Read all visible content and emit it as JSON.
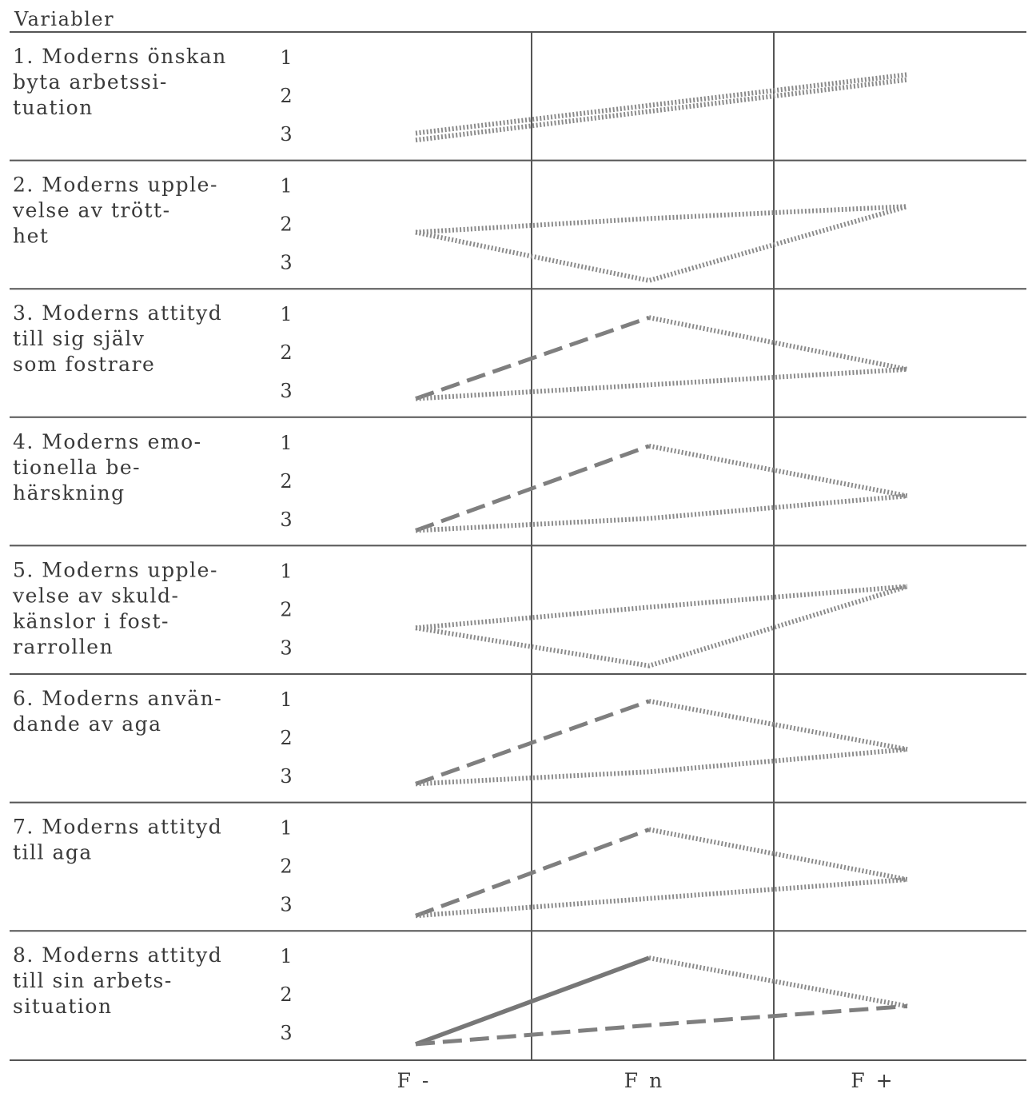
{
  "chart_data": {
    "type": "line",
    "column_header": "Variabler",
    "level_labels": [
      "1",
      "2",
      "3"
    ],
    "x": [
      "F -",
      "F n",
      "F +"
    ],
    "styles": {
      "dotted": "#8a8a8a",
      "dashed": "#7f7f7f",
      "solid": "#777777"
    },
    "rows": [
      {
        "label_lines": [
          "1. Moderns önskan",
          "byta arbetssi-",
          "tuation"
        ],
        "lines": [
          {
            "style": "dotted",
            "y": [
              2.95,
              null,
              1.2
            ]
          },
          {
            "style": "dotted",
            "y": [
              2.75,
              null,
              1.05
            ]
          }
        ]
      },
      {
        "label_lines": [
          "2. Moderns upple-",
          "velse av trött-",
          "het"
        ],
        "lines": [
          {
            "style": "dotted",
            "y": [
              1.9,
              1.5,
              1.15
            ]
          },
          {
            "style": "dotted",
            "y": [
              1.9,
              3.3,
              1.15
            ]
          }
        ]
      },
      {
        "label_lines": [
          "3. Moderns attityd",
          "till sig själv",
          "som fostrare"
        ],
        "lines": [
          {
            "style": "dashed",
            "y": [
              3.0,
              0.65,
              null
            ]
          },
          {
            "style": "dotted",
            "y": [
              null,
              0.65,
              2.15
            ]
          },
          {
            "style": "dotted",
            "y": [
              3.0,
              2.6,
              2.15
            ]
          }
        ]
      },
      {
        "label_lines": [
          "4. Moderns emo-",
          "tionella be-",
          "härskning"
        ],
        "lines": [
          {
            "style": "dashed",
            "y": [
              3.1,
              0.65,
              null
            ]
          },
          {
            "style": "dotted",
            "y": [
              null,
              0.65,
              2.1
            ]
          },
          {
            "style": "dotted",
            "y": [
              3.1,
              2.75,
              2.1
            ]
          }
        ]
      },
      {
        "label_lines": [
          "5. Moderns upple-",
          "velse av skuld-",
          "känslor i fost-",
          "rarrollen"
        ],
        "lines": [
          {
            "style": "dotted",
            "y": [
              2.2,
              1.6,
              1.0
            ]
          },
          {
            "style": "dotted",
            "y": [
              2.2,
              3.3,
              1.0
            ]
          }
        ]
      },
      {
        "label_lines": [
          "6. Moderns använ-",
          "dande av aga"
        ],
        "lines": [
          {
            "style": "dashed",
            "y": [
              3.0,
              0.6,
              null
            ]
          },
          {
            "style": "dotted",
            "y": [
              null,
              0.6,
              2.0
            ]
          },
          {
            "style": "dotted",
            "y": [
              3.0,
              2.65,
              2.0
            ]
          }
        ]
      },
      {
        "label_lines": [
          "7. Moderns attityd",
          "till aga"
        ],
        "lines": [
          {
            "style": "dashed",
            "y": [
              3.1,
              0.6,
              null
            ]
          },
          {
            "style": "dotted",
            "y": [
              null,
              0.6,
              2.05
            ]
          },
          {
            "style": "dotted",
            "y": [
              3.1,
              2.6,
              2.05
            ]
          }
        ]
      },
      {
        "label_lines": [
          "8. Moderns attityd",
          "till sin arbets-",
          "situation"
        ],
        "lines": [
          {
            "style": "solid",
            "y": [
              3.1,
              0.6,
              null
            ]
          },
          {
            "style": "dotted",
            "y": [
              null,
              0.6,
              2.0
            ]
          },
          {
            "style": "dashed",
            "y": [
              3.1,
              2.55,
              2.0
            ]
          }
        ]
      }
    ]
  }
}
